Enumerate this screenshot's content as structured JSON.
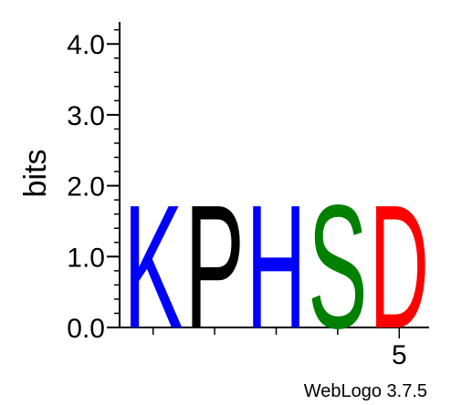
{
  "chart_data": {
    "type": "sequence-logo",
    "ylabel": "bits",
    "ylim": [
      0,
      4.2
    ],
    "yticks": [
      {
        "value": 0,
        "label": "0.0"
      },
      {
        "value": 1,
        "label": "1.0"
      },
      {
        "value": 2,
        "label": "2.0"
      },
      {
        "value": 3,
        "label": "3.0"
      },
      {
        "value": 4,
        "label": "4.0"
      }
    ],
    "minor_tick_step": 0.2,
    "positions": [
      1,
      2,
      3,
      4,
      5
    ],
    "xtick_labels": [
      {
        "position": 5,
        "label": "5"
      }
    ],
    "stacks": [
      {
        "position": 1,
        "letters": [
          {
            "letter": "K",
            "bits": 1.78,
            "color": "#0000ff"
          }
        ]
      },
      {
        "position": 2,
        "letters": [
          {
            "letter": "P",
            "bits": 1.78,
            "color": "#000000"
          }
        ]
      },
      {
        "position": 3,
        "letters": [
          {
            "letter": "H",
            "bits": 1.78,
            "color": "#0000ff"
          }
        ]
      },
      {
        "position": 4,
        "letters": [
          {
            "letter": "S",
            "bits": 1.78,
            "color": "#008000"
          }
        ]
      },
      {
        "position": 5,
        "letters": [
          {
            "letter": "D",
            "bits": 1.78,
            "color": "#ff0000"
          }
        ]
      }
    ]
  },
  "credit": "WebLogo 3.7.5"
}
